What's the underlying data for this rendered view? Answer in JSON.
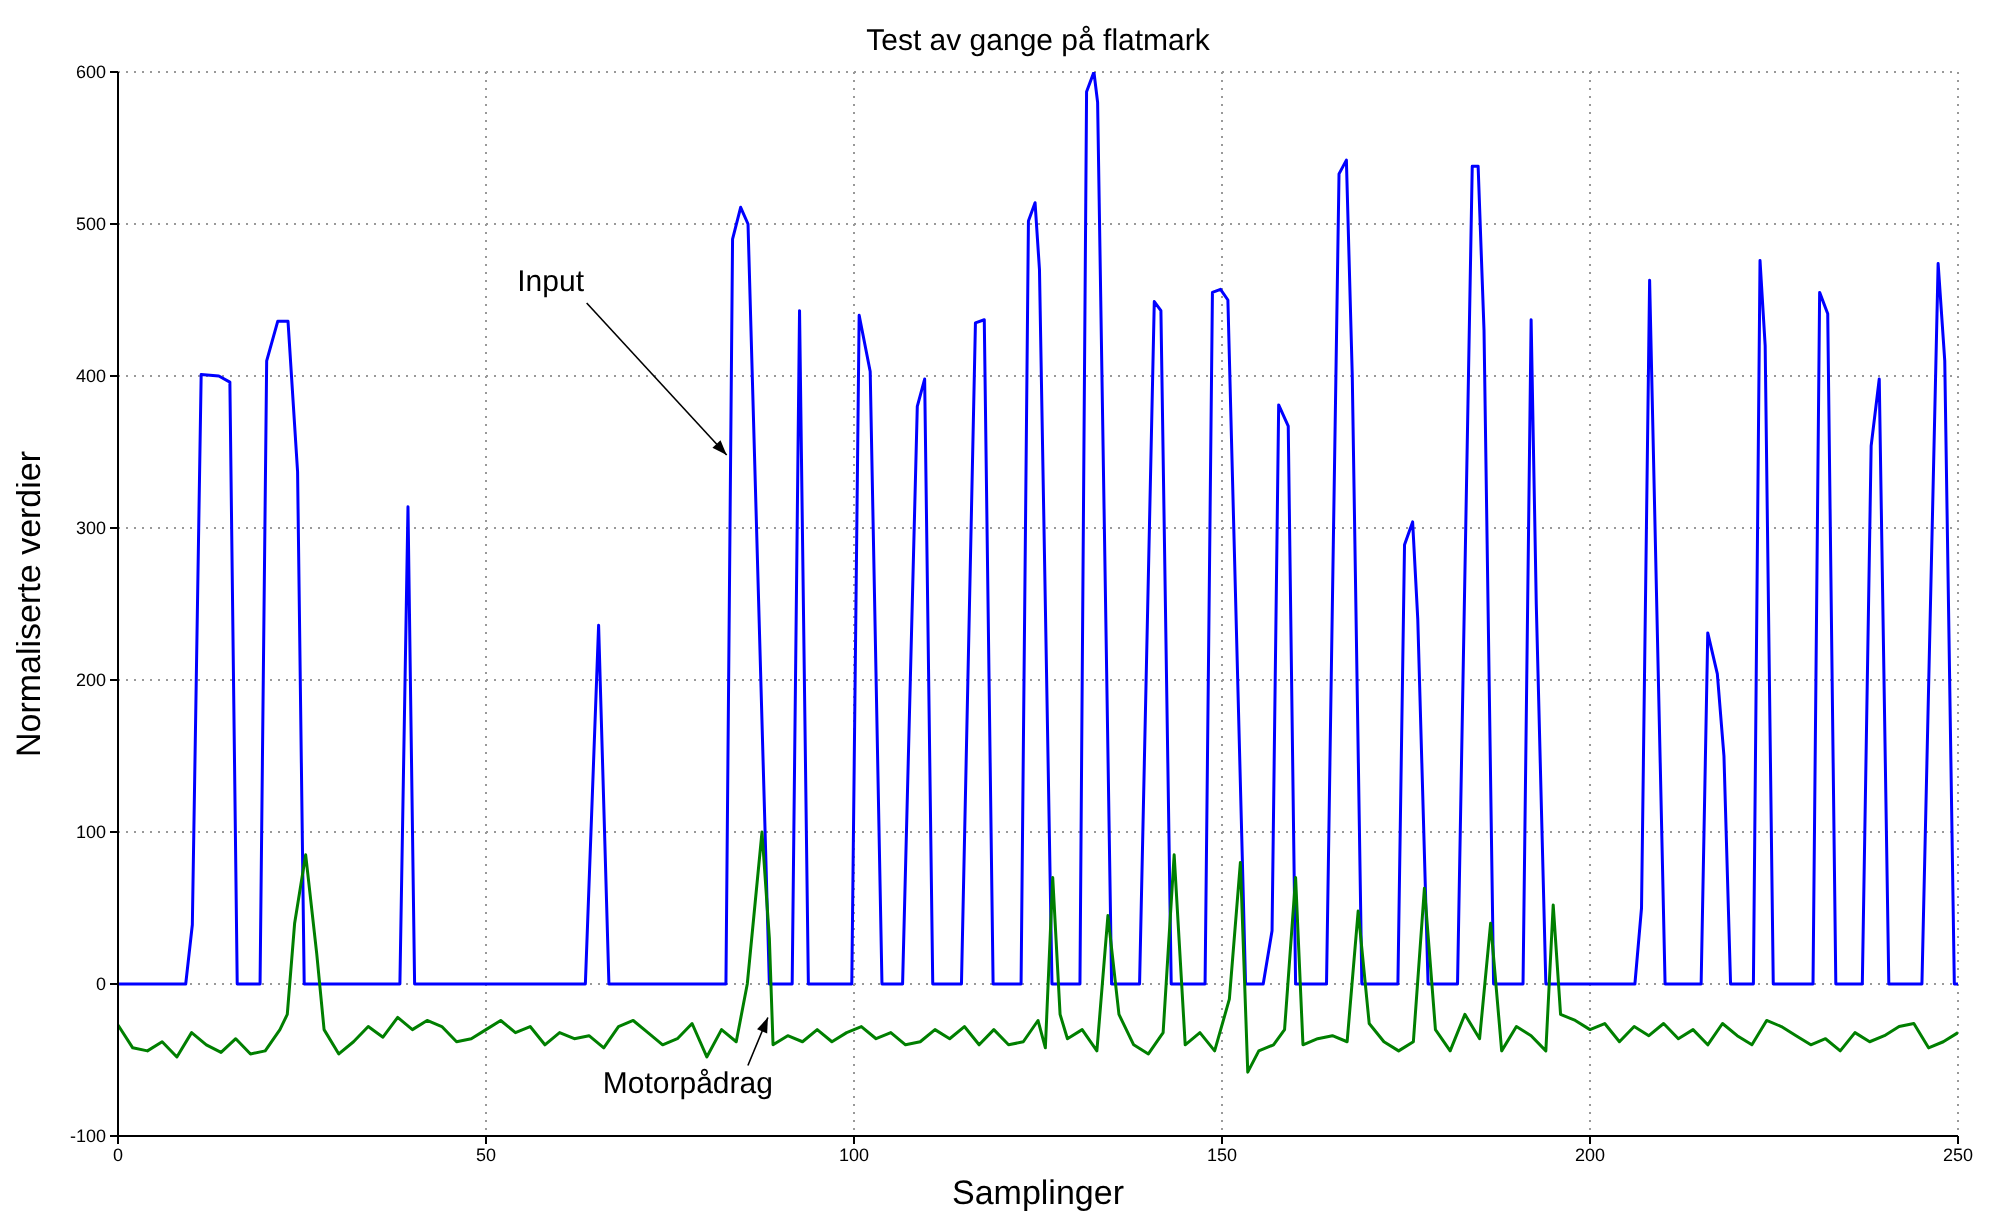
{
  "chart_data": {
    "type": "line",
    "title": "Test av gange på flatmark",
    "xlabel": "Samplinger",
    "ylabel": "Normaliserte verdier",
    "xlim": [
      0,
      250
    ],
    "xticks": [
      0,
      50,
      100,
      150,
      200,
      250
    ],
    "ylim": [
      -100,
      600
    ],
    "yticks": [
      -100,
      0,
      100,
      200,
      300,
      400,
      500,
      600
    ],
    "grid": true,
    "legend": false,
    "marker": "none",
    "line_style": "solid",
    "annotations": [
      {
        "text": "Input",
        "x": 82.7,
        "y": 348
      },
      {
        "text": "Motorpådrag",
        "x": 88.3,
        "y": -22
      }
    ],
    "series": [
      {
        "color": "#0000ff",
        "x": [
          0,
          9.2,
          10.1,
          11.3,
          13.7,
          15.2,
          16.2,
          19.3,
          20.2,
          21.7,
          23.1,
          24.4,
          25.3,
          38.3,
          39.4,
          40.3,
          63.5,
          65.3,
          66.7,
          82.6,
          83.5,
          84.6,
          85.6,
          88.5,
          91.6,
          92.6,
          93.8,
          99.7,
          100.7,
          102.2,
          103.8,
          106.6,
          108.6,
          109.6,
          110.7,
          114.6,
          116.5,
          117.7,
          118.9,
          122.7,
          123.7,
          124.6,
          125.2,
          126.9,
          130.7,
          131.6,
          132.6,
          133.1,
          135,
          138.8,
          140.8,
          141.7,
          143.1,
          147.7,
          148.7,
          149.8,
          150.8,
          153.2,
          155.6,
          156.8,
          157.7,
          159,
          160,
          164.2,
          165.9,
          166.9,
          167.7,
          169,
          173.9,
          174.8,
          175.9,
          176.6,
          178,
          182,
          184,
          184.8,
          185.6,
          186.9,
          190.9,
          192,
          192.7,
          194,
          206.1,
          207,
          208.1,
          210.2,
          215.1,
          216,
          217.3,
          218.2,
          219.1,
          222.2,
          223.1,
          223.8,
          224.9,
          230.3,
          231.2,
          232.3,
          233.4,
          237,
          238.2,
          239.3,
          240.6,
          245.1,
          247.3,
          248.2,
          249.5,
          250
        ],
        "values": [
          0,
          0,
          39,
          401,
          400,
          396,
          0,
          0,
          410,
          436,
          436,
          337,
          0,
          0,
          314,
          0,
          0,
          236,
          0,
          0,
          490,
          511,
          500,
          0,
          0,
          443,
          0,
          0,
          440,
          403,
          0,
          0,
          380,
          398,
          0,
          0,
          435,
          437,
          0,
          0,
          502,
          514,
          470,
          0,
          0,
          587,
          600,
          580,
          0,
          0,
          449,
          443,
          0,
          0,
          455,
          457,
          450,
          0,
          0,
          35,
          381,
          367,
          0,
          0,
          533,
          542,
          400,
          0,
          0,
          289,
          304,
          240,
          0,
          0,
          538,
          538,
          430,
          0,
          0,
          437,
          250,
          0,
          0,
          50,
          463,
          0,
          0,
          231,
          204,
          150,
          0,
          0,
          476,
          420,
          0,
          0,
          455,
          441,
          0,
          0,
          354,
          398,
          0,
          0,
          474,
          410,
          0,
          0
        ]
      },
      {
        "color": "#007f00",
        "x": [
          0,
          2,
          4,
          6,
          8,
          10,
          12,
          14,
          16,
          18,
          20,
          22,
          23,
          24,
          25.5,
          27,
          28,
          30,
          32,
          34,
          36,
          38,
          40,
          42,
          44,
          46,
          48,
          50,
          52,
          54,
          56,
          58,
          60,
          62,
          64,
          66,
          68,
          70,
          72,
          74,
          76,
          78,
          80,
          82,
          84,
          85.5,
          87.5,
          88.5,
          89,
          91,
          93,
          95,
          97,
          99,
          101,
          103,
          105,
          107,
          109,
          111,
          113,
          115,
          117,
          119,
          121,
          123,
          125,
          126,
          127,
          128,
          129,
          131,
          133,
          134.5,
          136,
          138,
          140,
          142,
          143.5,
          145,
          147,
          149,
          151,
          152.5,
          153.5,
          155,
          157,
          158.5,
          160,
          161,
          163,
          165,
          167,
          168.5,
          170,
          172,
          174,
          176,
          177.5,
          179,
          181,
          183,
          185,
          186.5,
          188,
          190,
          192,
          194,
          195,
          196,
          198,
          200,
          202,
          204,
          206,
          208,
          210,
          212,
          214,
          216,
          218,
          220,
          222,
          224,
          226,
          228,
          230,
          232,
          234,
          236,
          238,
          240,
          242,
          244,
          246,
          248,
          250
        ],
        "values": [
          -27,
          -42,
          -44,
          -38,
          -48,
          -32,
          -40,
          -45,
          -36,
          -46,
          -44,
          -30,
          -20,
          40,
          85,
          20,
          -30,
          -46,
          -38,
          -28,
          -35,
          -22,
          -30,
          -24,
          -28,
          -38,
          -36,
          -30,
          -24,
          -32,
          -28,
          -40,
          -32,
          -36,
          -34,
          -42,
          -28,
          -24,
          -32,
          -40,
          -36,
          -26,
          -48,
          -30,
          -38,
          0,
          100,
          30,
          -40,
          -34,
          -38,
          -30,
          -38,
          -32,
          -28,
          -36,
          -32,
          -40,
          -38,
          -30,
          -36,
          -28,
          -40,
          -30,
          -40,
          -38,
          -24,
          -42,
          70,
          -20,
          -36,
          -30,
          -44,
          45,
          -20,
          -40,
          -46,
          -32,
          85,
          -40,
          -32,
          -44,
          -10,
          80,
          -58,
          -44,
          -40,
          -30,
          70,
          -40,
          -36,
          -34,
          -38,
          48,
          -26,
          -38,
          -44,
          -38,
          63,
          -30,
          -44,
          -20,
          -36,
          40,
          -44,
          -28,
          -34,
          -44,
          52,
          -20,
          -24,
          -30,
          -26,
          -38,
          -28,
          -34,
          -26,
          -36,
          -30,
          -40,
          -26,
          -34,
          -40,
          -24,
          -28,
          -34,
          -40,
          -36,
          -44,
          -32,
          -38,
          -34,
          -28,
          -26,
          -42,
          -38,
          -32
        ]
      }
    ]
  }
}
